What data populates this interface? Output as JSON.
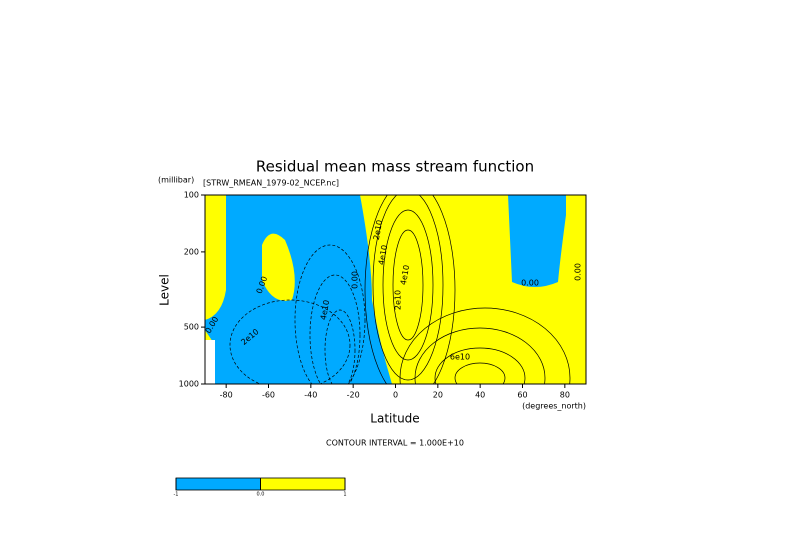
{
  "chart_data": {
    "type": "contour",
    "title": "Residual mean mass stream function",
    "subtitle": "[STRW_RMEAN_1979-02_NCEP.nc]",
    "x_label": "Latitude",
    "x_units": "(degrees_north)",
    "y_label": "Level",
    "y_units": "(millibar)",
    "annotation": "CONTOUR INTERVAL = 1.000E+10",
    "xlim": [
      -90,
      90
    ],
    "xticks": [
      -80,
      -60,
      -40,
      -20,
      0,
      20,
      40,
      60,
      80
    ],
    "ylim": [
      1000,
      100
    ],
    "yticks": [
      100,
      200,
      500,
      1000
    ],
    "log_y": true,
    "colors": [
      "#00aaff",
      "#ffff00"
    ],
    "colorbar_ticks": [
      {
        "value": -1,
        "label": "-1"
      },
      {
        "value": 0,
        "label": "0.0"
      },
      {
        "value": 1,
        "label": "1"
      }
    ],
    "contour_labels": [
      "0.00",
      "0.00",
      "2e10",
      "4e10",
      "0.00",
      "2e10",
      "4e10",
      "2e10",
      "4e10",
      "6e10",
      "0.00",
      "0.00"
    ]
  }
}
